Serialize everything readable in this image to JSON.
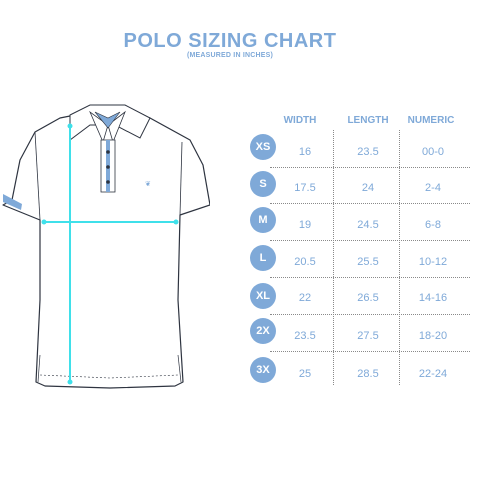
{
  "title": "POLO SIZING CHART",
  "subtitle": "(MEASURED IN INCHES)",
  "colors": {
    "accent": "#7fa9d8",
    "measure": "#3fe0ea",
    "outline": "#2e3440"
  },
  "table": {
    "columns": [
      "WIDTH",
      "LENGTH",
      "NUMERIC"
    ],
    "rows": [
      {
        "size": "XS",
        "width": "16",
        "length": "23.5",
        "numeric": "00-0"
      },
      {
        "size": "S",
        "width": "17.5",
        "length": "24",
        "numeric": "2-4"
      },
      {
        "size": "M",
        "width": "19",
        "length": "24.5",
        "numeric": "6-8"
      },
      {
        "size": "L",
        "width": "20.5",
        "length": "25.5",
        "numeric": "10-12"
      },
      {
        "size": "XL",
        "width": "22",
        "length": "26.5",
        "numeric": "14-16"
      },
      {
        "size": "2X",
        "width": "23.5",
        "length": "27.5",
        "numeric": "18-20"
      },
      {
        "size": "3X",
        "width": "25",
        "length": "28.5",
        "numeric": "22-24"
      }
    ]
  },
  "icons": {
    "shirt": "polo-shirt-illustration",
    "logo": "chest-logo-icon"
  }
}
